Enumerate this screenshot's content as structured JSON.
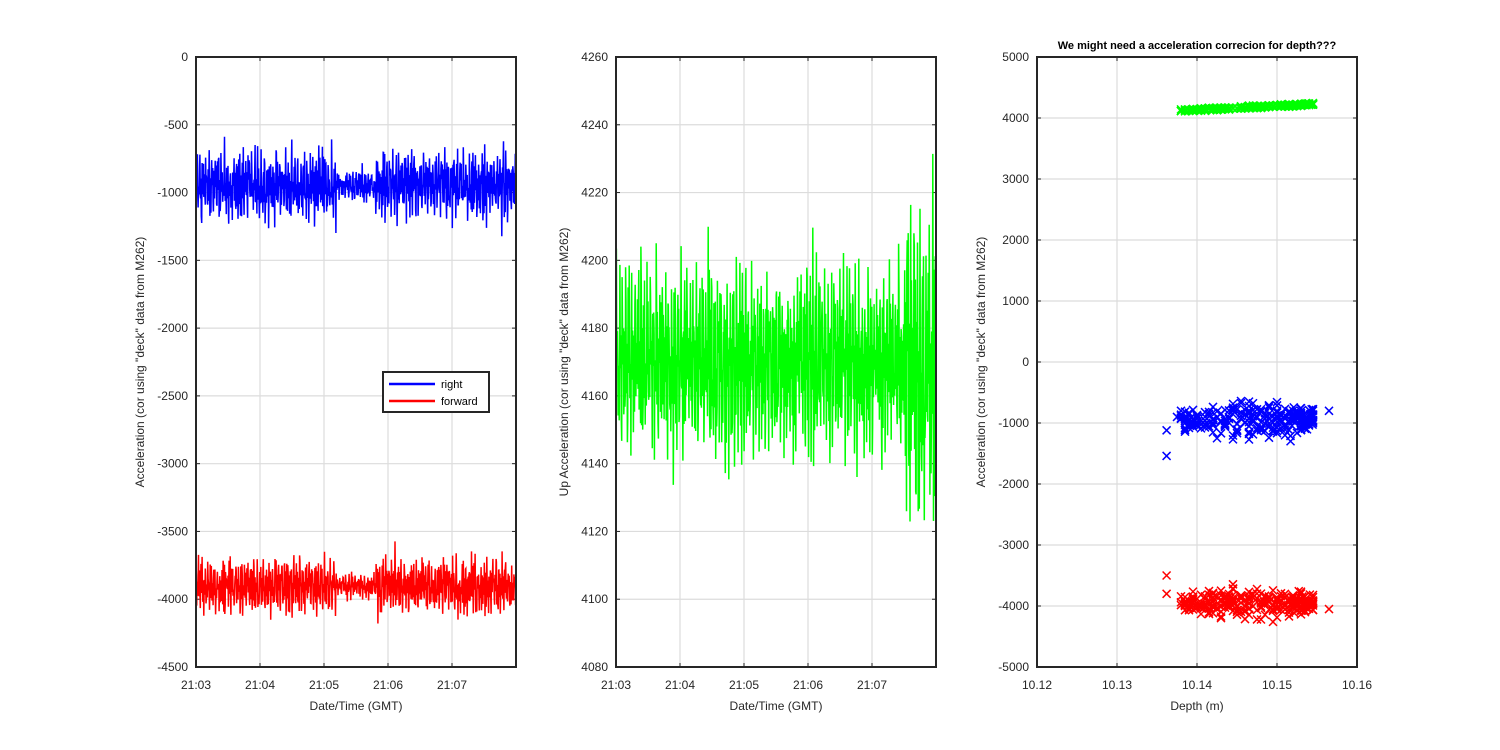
{
  "chart_data": [
    {
      "type": "line",
      "title": "",
      "xlabel": "Date/Time (GMT)",
      "ylabel": "Acceleration (cor using \"deck\" data from M262)",
      "x_ticks": [
        "21:03",
        "21:04",
        "21:05",
        "21:06",
        "21:07"
      ],
      "xlim_minutes": [
        0,
        5
      ],
      "ylim": [
        -4500,
        0
      ],
      "y_ticks": [
        0,
        -500,
        -1000,
        -1500,
        -2000,
        -2500,
        -3000,
        -3500,
        -4000,
        -4500
      ],
      "grid": true,
      "legend": {
        "placement": "center-right",
        "entries": [
          "right",
          "forward"
        ]
      },
      "series": [
        {
          "name": "right",
          "color": "#0000ff",
          "mean": -950,
          "amplitude": 250,
          "min": -1550,
          "max": -500
        },
        {
          "name": "forward",
          "color": "#ff0000",
          "mean": -3900,
          "amplitude": 200,
          "min": -4380,
          "max": -3440
        }
      ]
    },
    {
      "type": "line",
      "title": "",
      "xlabel": "Date/Time (GMT)",
      "ylabel": "Up Acceleration (cor using \"deck\" data from M262)",
      "x_ticks": [
        "21:03",
        "21:04",
        "21:05",
        "21:06",
        "21:07"
      ],
      "xlim_minutes": [
        0,
        5
      ],
      "ylim": [
        4080,
        4260
      ],
      "y_ticks": [
        4080,
        4100,
        4120,
        4140,
        4160,
        4180,
        4200,
        4220,
        4240,
        4260
      ],
      "grid": true,
      "series": [
        {
          "color": "#00ff00",
          "mean": 4170,
          "amplitude": 28,
          "min": 4096,
          "max": 4250
        }
      ]
    },
    {
      "type": "scatter",
      "title": "We might need a acceleration correcion for depth???",
      "xlabel": "Depth (m)",
      "ylabel": "Acceleration (cor using \"deck\" data from M262)",
      "x_ticks": [
        10.12,
        10.13,
        10.14,
        10.15,
        10.16
      ],
      "xlim": [
        10.12,
        10.16
      ],
      "ylim": [
        -5000,
        5000
      ],
      "y_ticks": [
        5000,
        4000,
        3000,
        2000,
        1000,
        0,
        -1000,
        -2000,
        -3000,
        -4000,
        -5000
      ],
      "grid": true,
      "marker": "x",
      "series": [
        {
          "color": "#00ff00",
          "depth_range": [
            10.1362,
            10.1565
          ],
          "y_start": 4110,
          "y_end": 4240,
          "spread": 40
        },
        {
          "color": "#0000ff",
          "depth_range": [
            10.1362,
            10.1565
          ],
          "y_center": -950,
          "spread": 350,
          "outliers": [
            [
              10.1362,
              -1540
            ],
            [
              10.1362,
              -1120
            ],
            [
              10.1565,
              -800
            ]
          ]
        },
        {
          "color": "#ff0000",
          "depth_range": [
            10.1362,
            10.1565
          ],
          "y_center": -3950,
          "spread": 300,
          "outliers": [
            [
              10.1362,
              -3500
            ],
            [
              10.1362,
              -3800
            ],
            [
              10.1565,
              -4050
            ]
          ]
        }
      ]
    }
  ]
}
